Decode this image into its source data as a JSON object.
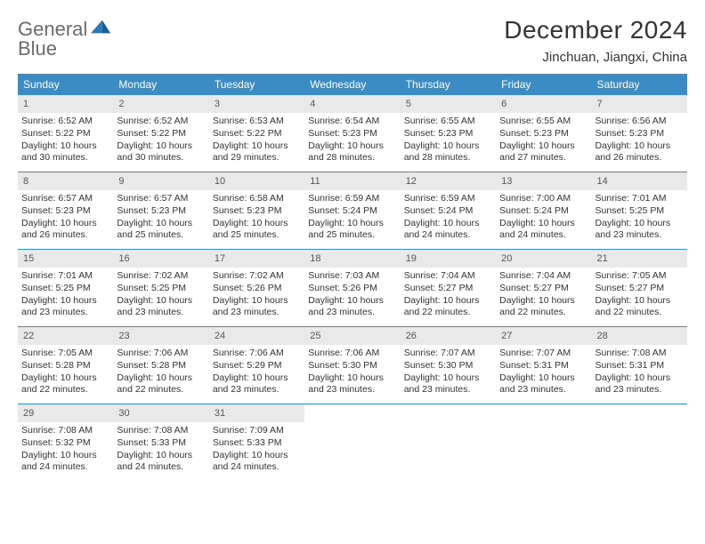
{
  "logo": {
    "line1": "General",
    "line2": "Blue"
  },
  "title": "December 2024",
  "location": "Jinchuan, Jiangxi, China",
  "colors": {
    "header_blue": "#3b8bc4",
    "rule_blue": "#3b8bc4",
    "daynum_bg": "#e9e9e9",
    "text": "#333333",
    "logo_gray": "#6b6b6b",
    "logo_blue": "#2a7ab8"
  },
  "dow": [
    "Sunday",
    "Monday",
    "Tuesday",
    "Wednesday",
    "Thursday",
    "Friday",
    "Saturday"
  ],
  "weeks": [
    [
      {
        "n": "1",
        "sr": "6:52 AM",
        "ss": "5:22 PM",
        "dl": "10 hours and 30 minutes."
      },
      {
        "n": "2",
        "sr": "6:52 AM",
        "ss": "5:22 PM",
        "dl": "10 hours and 30 minutes."
      },
      {
        "n": "3",
        "sr": "6:53 AM",
        "ss": "5:22 PM",
        "dl": "10 hours and 29 minutes."
      },
      {
        "n": "4",
        "sr": "6:54 AM",
        "ss": "5:23 PM",
        "dl": "10 hours and 28 minutes."
      },
      {
        "n": "5",
        "sr": "6:55 AM",
        "ss": "5:23 PM",
        "dl": "10 hours and 28 minutes."
      },
      {
        "n": "6",
        "sr": "6:55 AM",
        "ss": "5:23 PM",
        "dl": "10 hours and 27 minutes."
      },
      {
        "n": "7",
        "sr": "6:56 AM",
        "ss": "5:23 PM",
        "dl": "10 hours and 26 minutes."
      }
    ],
    [
      {
        "n": "8",
        "sr": "6:57 AM",
        "ss": "5:23 PM",
        "dl": "10 hours and 26 minutes."
      },
      {
        "n": "9",
        "sr": "6:57 AM",
        "ss": "5:23 PM",
        "dl": "10 hours and 25 minutes."
      },
      {
        "n": "10",
        "sr": "6:58 AM",
        "ss": "5:23 PM",
        "dl": "10 hours and 25 minutes."
      },
      {
        "n": "11",
        "sr": "6:59 AM",
        "ss": "5:24 PM",
        "dl": "10 hours and 25 minutes."
      },
      {
        "n": "12",
        "sr": "6:59 AM",
        "ss": "5:24 PM",
        "dl": "10 hours and 24 minutes."
      },
      {
        "n": "13",
        "sr": "7:00 AM",
        "ss": "5:24 PM",
        "dl": "10 hours and 24 minutes."
      },
      {
        "n": "14",
        "sr": "7:01 AM",
        "ss": "5:25 PM",
        "dl": "10 hours and 23 minutes."
      }
    ],
    [
      {
        "n": "15",
        "sr": "7:01 AM",
        "ss": "5:25 PM",
        "dl": "10 hours and 23 minutes."
      },
      {
        "n": "16",
        "sr": "7:02 AM",
        "ss": "5:25 PM",
        "dl": "10 hours and 23 minutes."
      },
      {
        "n": "17",
        "sr": "7:02 AM",
        "ss": "5:26 PM",
        "dl": "10 hours and 23 minutes."
      },
      {
        "n": "18",
        "sr": "7:03 AM",
        "ss": "5:26 PM",
        "dl": "10 hours and 23 minutes."
      },
      {
        "n": "19",
        "sr": "7:04 AM",
        "ss": "5:27 PM",
        "dl": "10 hours and 22 minutes."
      },
      {
        "n": "20",
        "sr": "7:04 AM",
        "ss": "5:27 PM",
        "dl": "10 hours and 22 minutes."
      },
      {
        "n": "21",
        "sr": "7:05 AM",
        "ss": "5:27 PM",
        "dl": "10 hours and 22 minutes."
      }
    ],
    [
      {
        "n": "22",
        "sr": "7:05 AM",
        "ss": "5:28 PM",
        "dl": "10 hours and 22 minutes."
      },
      {
        "n": "23",
        "sr": "7:06 AM",
        "ss": "5:28 PM",
        "dl": "10 hours and 22 minutes."
      },
      {
        "n": "24",
        "sr": "7:06 AM",
        "ss": "5:29 PM",
        "dl": "10 hours and 23 minutes."
      },
      {
        "n": "25",
        "sr": "7:06 AM",
        "ss": "5:30 PM",
        "dl": "10 hours and 23 minutes."
      },
      {
        "n": "26",
        "sr": "7:07 AM",
        "ss": "5:30 PM",
        "dl": "10 hours and 23 minutes."
      },
      {
        "n": "27",
        "sr": "7:07 AM",
        "ss": "5:31 PM",
        "dl": "10 hours and 23 minutes."
      },
      {
        "n": "28",
        "sr": "7:08 AM",
        "ss": "5:31 PM",
        "dl": "10 hours and 23 minutes."
      }
    ],
    [
      {
        "n": "29",
        "sr": "7:08 AM",
        "ss": "5:32 PM",
        "dl": "10 hours and 24 minutes."
      },
      {
        "n": "30",
        "sr": "7:08 AM",
        "ss": "5:33 PM",
        "dl": "10 hours and 24 minutes."
      },
      {
        "n": "31",
        "sr": "7:09 AM",
        "ss": "5:33 PM",
        "dl": "10 hours and 24 minutes."
      },
      null,
      null,
      null,
      null
    ]
  ],
  "labels": {
    "sunrise": "Sunrise:",
    "sunset": "Sunset:",
    "daylight": "Daylight:"
  }
}
